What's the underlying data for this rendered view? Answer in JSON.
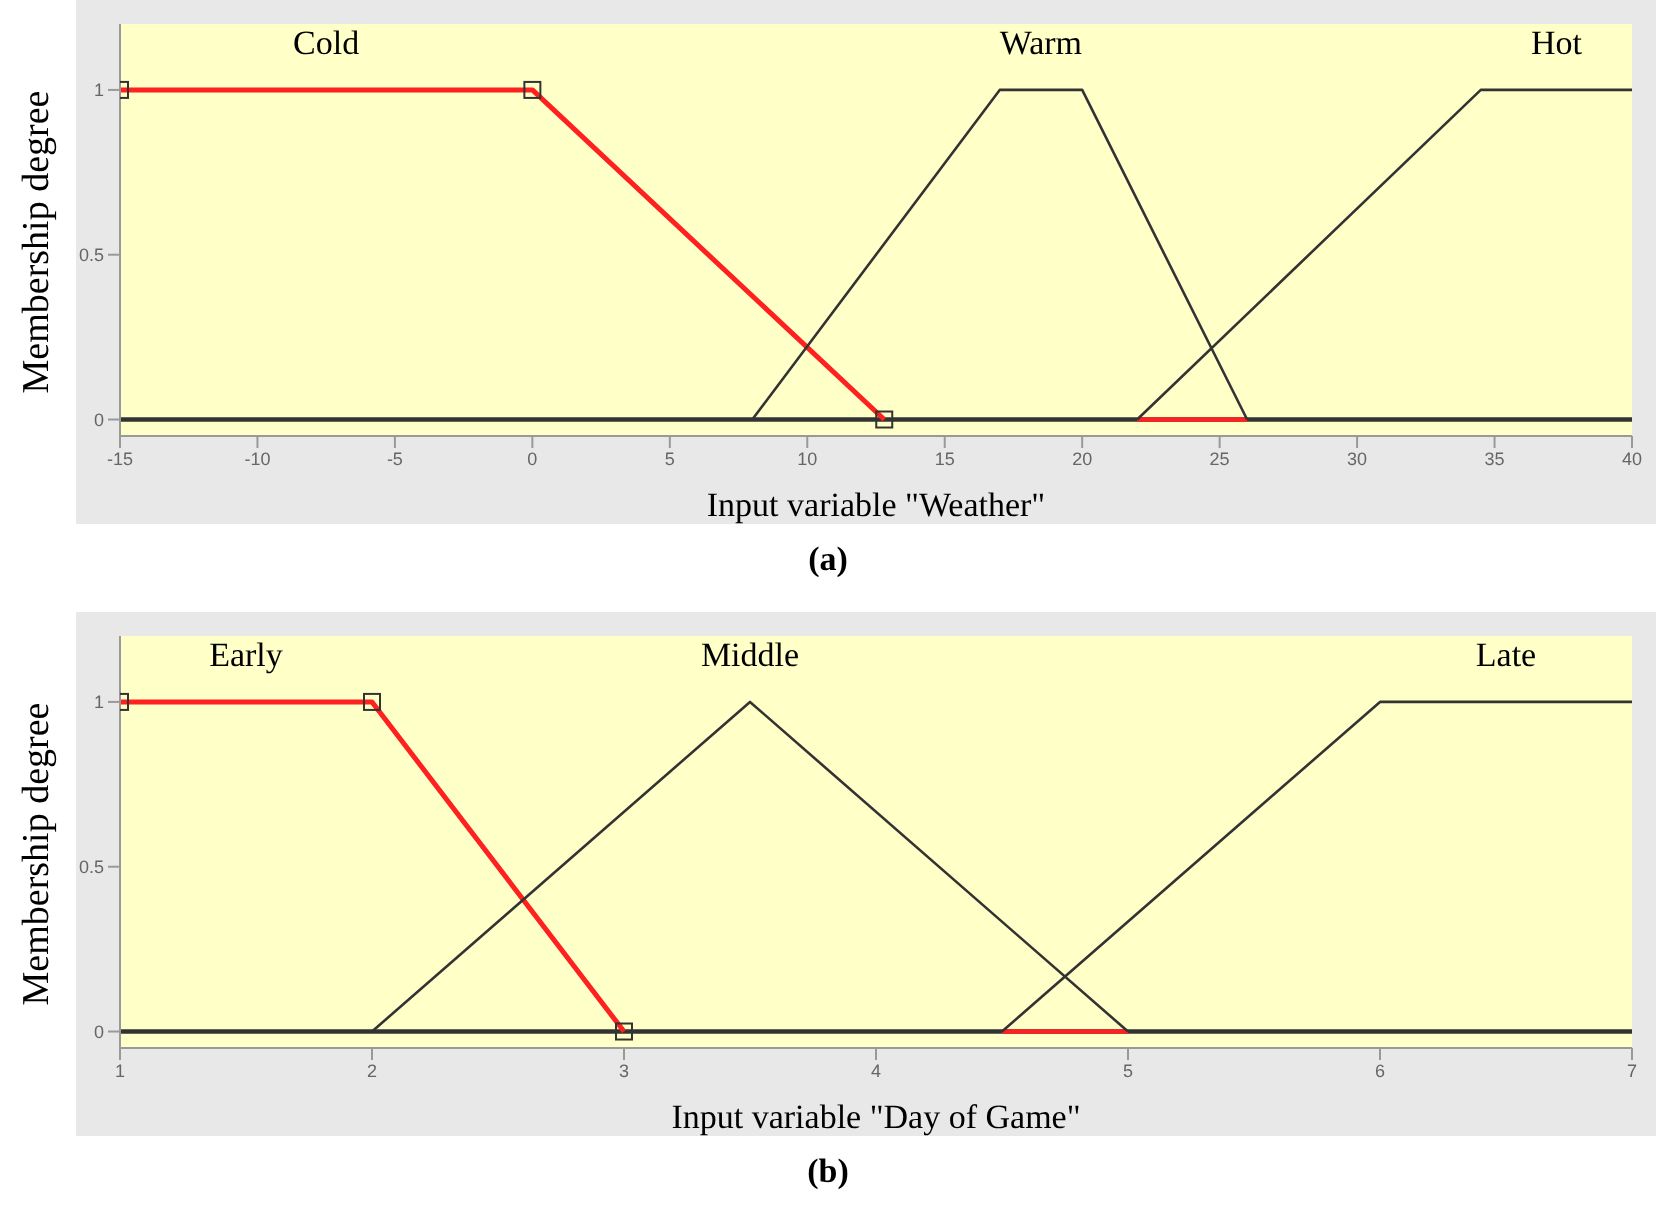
{
  "chart_data": [
    {
      "type": "line",
      "xlabel": "Input variable \"Weather\"",
      "ylabel": "Membership degree",
      "xlim": [
        -15,
        40
      ],
      "xticks": [
        -15,
        -10,
        -5,
        0,
        5,
        10,
        15,
        20,
        25,
        30,
        35,
        40
      ],
      "ylim": [
        -0.05,
        1.2
      ],
      "yticks": [
        0,
        0.5,
        1
      ],
      "annotations": [
        "(a)"
      ],
      "series": [
        {
          "color": "#333333",
          "x": [
            -15,
            40
          ],
          "values": [
            0,
            0
          ]
        },
        {
          "color": "#ff2020",
          "x": [
            22,
            26
          ],
          "values": [
            0,
            0
          ]
        },
        {
          "name": "Cold",
          "color": "#ff2020",
          "marker": "square",
          "x": [
            -15,
            0,
            12.8
          ],
          "values": [
            1,
            1,
            0
          ]
        },
        {
          "name": "Warm",
          "color": "#333333",
          "x": [
            8,
            17,
            20,
            26
          ],
          "values": [
            0,
            1,
            1,
            0
          ]
        },
        {
          "name": "Hot",
          "color": "#333333",
          "x": [
            22,
            34.5,
            40
          ],
          "values": [
            0,
            1,
            1
          ]
        }
      ]
    },
    {
      "type": "line",
      "xlabel": "Input variable \"Day of Game\"",
      "ylabel": "Membership degree",
      "xlim": [
        1,
        7
      ],
      "xticks": [
        1,
        2,
        3,
        4,
        5,
        6,
        7
      ],
      "ylim": [
        -0.05,
        1.2
      ],
      "yticks": [
        0,
        0.5,
        1
      ],
      "annotations": [
        "(b)"
      ],
      "series": [
        {
          "color": "#333333",
          "x": [
            1,
            7
          ],
          "values": [
            0,
            0
          ]
        },
        {
          "color": "#ff2020",
          "x": [
            4.5,
            5
          ],
          "values": [
            0,
            0
          ]
        },
        {
          "name": "Early",
          "color": "#ff2020",
          "marker": "square",
          "x": [
            1,
            2,
            3
          ],
          "values": [
            1,
            1,
            0
          ]
        },
        {
          "name": "Middle",
          "color": "#333333",
          "x": [
            2,
            3.5,
            5
          ],
          "values": [
            0,
            1,
            0
          ]
        },
        {
          "name": "Late",
          "color": "#333333",
          "x": [
            4.5,
            6,
            7
          ],
          "values": [
            0,
            1,
            1
          ]
        }
      ]
    }
  ]
}
